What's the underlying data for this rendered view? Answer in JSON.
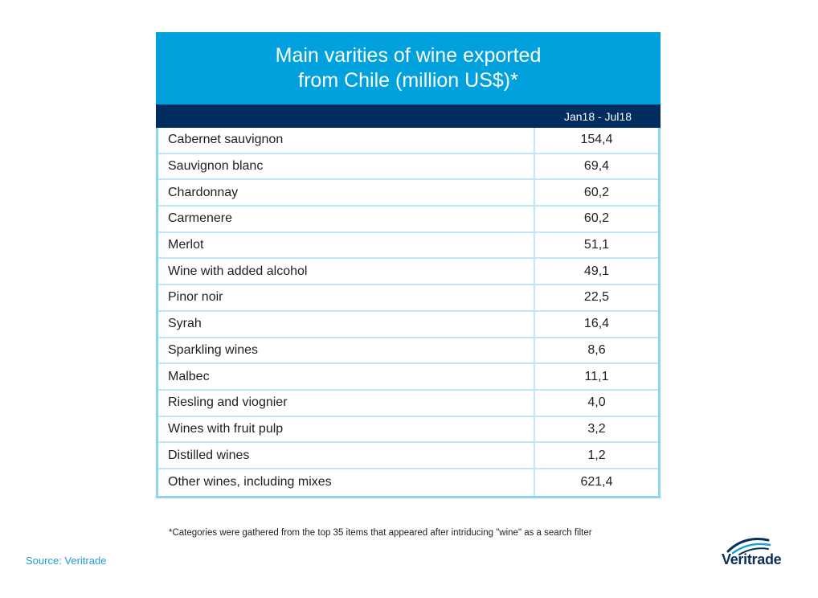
{
  "chart_data": {
    "type": "table",
    "title": "Main varities of wine exported from Chile (million US$)*",
    "title_lines": [
      "Main varities of wine exported",
      "from Chile (million US$)*"
    ],
    "column_header": "Jan18 - Jul18",
    "rows": [
      {
        "label": "Cabernet sauvignon",
        "value": "154,4"
      },
      {
        "label": "Sauvignon blanc",
        "value": "69,4"
      },
      {
        "label": "Chardonnay",
        "value": "60,2"
      },
      {
        "label": "Carmenere",
        "value": "60,2"
      },
      {
        "label": "Merlot",
        "value": "51,1"
      },
      {
        "label": "Wine with added alcohol",
        "value": "49,1"
      },
      {
        "label": "Pinor noir",
        "value": "22,5"
      },
      {
        "label": "Syrah",
        "value": "16,4"
      },
      {
        "label": "Sparkling wines",
        "value": "8,6"
      },
      {
        "label": "Malbec",
        "value": "11,1"
      },
      {
        "label": "Riesling and viognier",
        "value": "4,0"
      },
      {
        "label": "Wines with fruit pulp",
        "value": "3,2"
      },
      {
        "label": "Distilled wines",
        "value": "1,2"
      },
      {
        "label": "Other wines, including mixes",
        "value": "621,4"
      }
    ]
  },
  "footnote": "*Categories were gathered from the top 35 items that appeared after intriducing \"wine\" as a search filter",
  "source": "Source: Veritrade",
  "logo": {
    "text": "Veritrade",
    "icon": "veritrade-swoosh-icon"
  },
  "colors": {
    "title_band": "#00a1dc",
    "header_band": "#002d5f",
    "grid": "#bfe6f6",
    "source_text": "#1a9fd6"
  }
}
